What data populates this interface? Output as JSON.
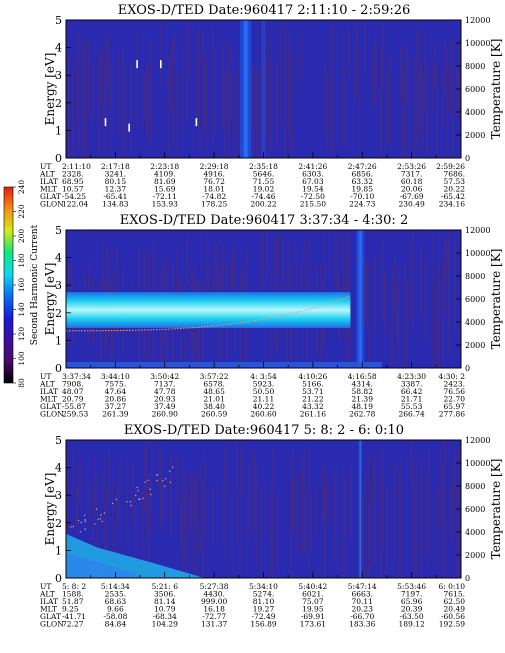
{
  "colorbar": {
    "label": "Second Harmonic Current",
    "ticks": [
      "80",
      "100",
      "120",
      "140",
      "160",
      "180",
      "200",
      "220",
      "240"
    ],
    "stops": [
      "#000000",
      "#4a0a6b",
      "#3a10a0",
      "#1b1bd8",
      "#0a6ff0",
      "#10d8f0",
      "#10e878",
      "#d8e81a",
      "#f09018",
      "#e81a10"
    ]
  },
  "colors": {
    "background": "#2a2ab0",
    "noise": "#7a2a3a",
    "beam": "#1ed0f0",
    "beam_core": "#b8f8ff",
    "trace": "#f0a080",
    "dot": "#ffffff"
  },
  "chart_data": [
    {
      "type": "heatmap",
      "title": "EXOS-D/TED   Date:960417  2:11:10 - 2:59:26",
      "ylabel": "Energy [eV]",
      "ylabel_right": "Temperature [K]",
      "ylim": [
        0,
        5
      ],
      "ylim_right": [
        0,
        12000
      ],
      "y_ticks": [
        "0",
        "1",
        "2",
        "3",
        "4",
        "5"
      ],
      "y_ticks_right": [
        "0",
        "2000",
        "4000",
        "6000",
        "8000",
        "10000",
        "12000"
      ],
      "row_labels": [
        "UT",
        "ALT",
        "ILAT",
        "MLT",
        "GLAT",
        "GLON"
      ],
      "x": [
        "2:11:10",
        "2:17:18",
        "2:23:18",
        "2:29:18",
        "2:35:18",
        "2:41:26",
        "2:47:26",
        "2:53:26",
        "2:59:26"
      ],
      "rows": [
        [
          "2328.",
          "3241.",
          "4109.",
          "4916.",
          "5646.",
          "6303.",
          "6856.",
          "7317.",
          "7686."
        ],
        [
          "68.95",
          "80.15",
          "81.69",
          "76.72",
          "71.55",
          "67.03",
          "63.32",
          "60.18",
          "57.53"
        ],
        [
          "10.57",
          "12.37",
          "15.69",
          "18.01",
          "19.02",
          "19.54",
          "19.85",
          "20.06",
          "20.22"
        ],
        [
          "-54.25",
          "-65.41",
          "-72.11",
          "-74.82",
          "-74.46",
          "-72.50",
          "-70.10",
          "-67.69",
          "-65.42"
        ],
        [
          "122.04",
          "134.83",
          "153.93",
          "178.25",
          "200.22",
          "215.50",
          "224.73",
          "230.49",
          "234.16"
        ]
      ],
      "features": {
        "spike_x": 0.455,
        "spike_half_width": 0.014,
        "spike_x2": 0.5,
        "beam": false,
        "dots": [
          [
            0.18,
            3.4
          ],
          [
            0.24,
            3.4
          ],
          [
            0.1,
            1.3
          ],
          [
            0.16,
            1.1
          ],
          [
            0.33,
            1.3
          ]
        ]
      }
    },
    {
      "type": "heatmap",
      "title": "EXOS-D/TED   Date:960417  3:37:34 - 4:30: 2",
      "ylabel": "Energy [eV]",
      "ylabel_right": "Temperature [K]",
      "ylim": [
        0,
        5
      ],
      "ylim_right": [
        0,
        12000
      ],
      "y_ticks": [
        "0",
        "1",
        "2",
        "3",
        "4",
        "5"
      ],
      "y_ticks_right": [
        "0",
        "2000",
        "4000",
        "6000",
        "8000",
        "10000",
        "12000"
      ],
      "row_labels": [
        "UT",
        "ALT",
        "ILAT",
        "MLT",
        "GLAT",
        "GLON"
      ],
      "x": [
        "3:37:34",
        "3:44:10",
        "3:50:42",
        "3:57:22",
        "4: 3:54",
        "4:10:26",
        "4:16:58",
        "4:23:30",
        "4:30: 2"
      ],
      "rows": [
        [
          "7908.",
          "7575.",
          "7137.",
          "6578.",
          "5923.",
          "5166.",
          "4314.",
          "3387.",
          "2423."
        ],
        [
          "48.07",
          "47.64",
          "47.78",
          "48.65",
          "50.50",
          "53.71",
          "58.82",
          "66.42",
          "76.56"
        ],
        [
          "20.79",
          "20.86",
          "20.93",
          "21.01",
          "21.11",
          "21.22",
          "21.39",
          "21.71",
          "22.70"
        ],
        [
          "-55.87",
          "37.27",
          "37.49",
          "38.40",
          "40.22",
          "43.32",
          "48.19",
          "55.53",
          "65.97"
        ],
        [
          "259.53",
          "261.39",
          "260.90",
          "260.59",
          "260.60",
          "261.16",
          "262.78",
          "266.74",
          "277.86"
        ]
      ],
      "features": {
        "spike_x": 0.745,
        "spike_half_width": 0.01,
        "beam": true,
        "beam_end": 0.72,
        "beam_center": 2.1,
        "beam_half_height": 0.65,
        "trace_start": 1.35,
        "trace_end": 2.6,
        "dots": []
      }
    },
    {
      "type": "heatmap",
      "title": "EXOS-D/TED   Date:960417  5: 8: 2 - 6: 0:10",
      "ylabel": "Energy [eV]",
      "ylabel_right": "Temperature [K]",
      "ylim": [
        0,
        5
      ],
      "ylim_right": [
        0,
        12000
      ],
      "y_ticks": [
        "0",
        "1",
        "2",
        "3",
        "4",
        "5"
      ],
      "y_ticks_right": [
        "0",
        "2000",
        "4000",
        "6000",
        "8000",
        "10000",
        "12000"
      ],
      "row_labels": [
        "UT",
        "ALT",
        "ILAT",
        "MLT",
        "GLAT",
        "GLON"
      ],
      "x": [
        "5: 8: 2",
        "5:14:34",
        "5:21: 6",
        "5:27:38",
        "5:34:10",
        "5:40:42",
        "5:47:14",
        "5:53:46",
        "6: 0:10"
      ],
      "rows": [
        [
          "1588.",
          "2535.",
          "3506.",
          "4430.",
          "5274.",
          "6021.",
          "6663.",
          "7197.",
          "7615."
        ],
        [
          "51.87",
          "68.63",
          "81.14",
          "999.00",
          "81.10",
          "75.07",
          "70.11",
          "65.96",
          "62.50"
        ],
        [
          "9.25",
          "9.66",
          "10.79",
          "16.18",
          "19.27",
          "19.95",
          "20.23",
          "20.39",
          "20.49"
        ],
        [
          "-41.71",
          "-58.08",
          "-68.34",
          "-72.77",
          "-72.49",
          "-69.91",
          "-66.70",
          "-63.50",
          "-60.56"
        ],
        [
          "72.27",
          "84.84",
          "104.29",
          "131.37",
          "156.89",
          "173.61",
          "183.36",
          "189.12",
          "192.59"
        ]
      ],
      "features": {
        "spike_x": 0.745,
        "spike_half_width": 0.004,
        "beam": false,
        "lowfan": true,
        "dots": []
      }
    }
  ]
}
